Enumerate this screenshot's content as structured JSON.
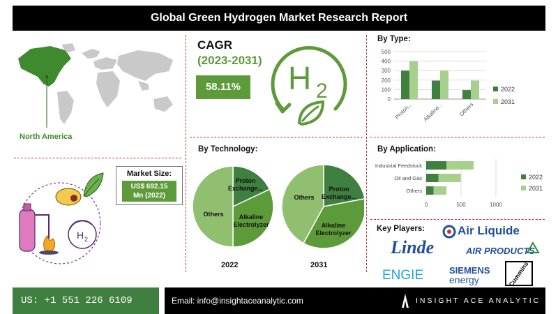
{
  "title": "Global Green Hydrogen Market Research Report",
  "region": {
    "label": "North America"
  },
  "cagr": {
    "title": "CAGR",
    "period": "(2023-2031)",
    "value": "58.11%"
  },
  "h2_logo": {
    "text": "H",
    "subscript": "2"
  },
  "market_size": {
    "label": "Market Size:",
    "value_line1": "US$ 692.15",
    "value_line2": "Mn (2022)"
  },
  "colors": {
    "dark_green": "#3f7f3f",
    "mid_green": "#5d9b3a",
    "light_green": "#a8d08d",
    "pie_light": "#8fbf6f",
    "divider": "#b23a3a"
  },
  "key_players": {
    "title": "Key Players:",
    "logos": [
      "Air Liquide",
      "Linde",
      "AIR PRODUCTS",
      "ENGIE",
      "SIEMENS",
      "energy",
      "Cummins"
    ]
  },
  "footer": {
    "phone": "US: +1 551 226 6109",
    "email": "Email: info@insightaceanalytic.com",
    "brand": "INSIGHT ACE ANALYTIC"
  },
  "chart_data": [
    {
      "id": "by_type",
      "type": "bar",
      "title": "By Type:",
      "categories": [
        "Proton...",
        "Alkaline...",
        "Others"
      ],
      "series": [
        {
          "name": "2022",
          "values": [
            300,
            195,
            95
          ],
          "color": "#3f7f3f"
        },
        {
          "name": "2031",
          "values": [
            400,
            300,
            195
          ],
          "color": "#a8d08d"
        }
      ],
      "ylim": [
        0,
        500
      ],
      "yticks": [
        0,
        100,
        200,
        300,
        400,
        500
      ],
      "legend": "right",
      "grid": true
    },
    {
      "id": "by_application",
      "type": "bar",
      "orientation": "horizontal",
      "stacked": true,
      "title": "By Application:",
      "categories": [
        "Industrial Feedstock",
        "Oil and Gas",
        "Others"
      ],
      "series": [
        {
          "name": "2022",
          "values": [
            290,
            175,
            105
          ],
          "color": "#3f7f3f"
        },
        {
          "name": "2031",
          "values": [
            390,
            320,
            185
          ],
          "color": "#a8d08d"
        }
      ],
      "xlim": [
        0,
        1000
      ],
      "xticks": [
        0,
        500,
        1000
      ],
      "legend": "right",
      "grid": true
    },
    {
      "id": "by_technology_2022",
      "type": "pie",
      "title": "By Technology:",
      "year": "2022",
      "slices": [
        {
          "label": "Proton Exchange...",
          "value": 18,
          "color": "#3f7f3f"
        },
        {
          "label": "Alkaline Electrolyzer",
          "value": 32,
          "color": "#5d9b3a"
        },
        {
          "label": "Others",
          "value": 50,
          "color": "#8fbf6f"
        }
      ]
    },
    {
      "id": "by_technology_2031",
      "type": "pie",
      "year": "2031",
      "slices": [
        {
          "label": "Proton Exchange...",
          "value": 22,
          "color": "#3f7f3f"
        },
        {
          "label": "Alkaline Electrolyzer",
          "value": 36,
          "color": "#5d9b3a"
        },
        {
          "label": "Others",
          "value": 42,
          "color": "#8fbf6f"
        }
      ]
    }
  ]
}
